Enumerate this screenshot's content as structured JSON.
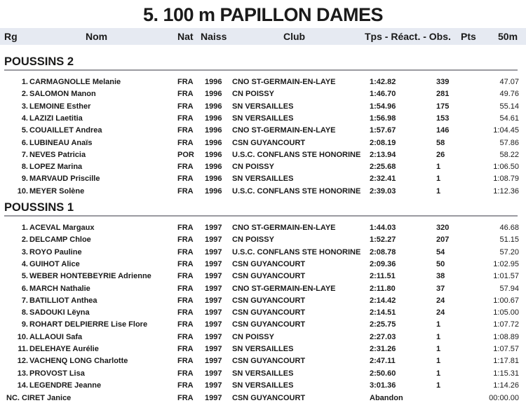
{
  "title": "5.  100 m PAPILLON DAMES",
  "columns": {
    "rg": "Rg",
    "nom": "Nom",
    "nat": "Nat",
    "naiss": "Naiss",
    "club": "Club",
    "tps": "Tps - Réact. - Obs.",
    "pts": "Pts",
    "split": "50m"
  },
  "sections": [
    {
      "name": "POUSSINS 2",
      "rows": [
        {
          "rk": "1.",
          "name": "CARMAGNOLLE Melanie",
          "nat": "FRA",
          "year": "1996",
          "club": "CNO ST-GERMAIN-EN-LAYE",
          "time": "1:42.82",
          "pts": "339",
          "split": "47.07"
        },
        {
          "rk": "2.",
          "name": "SALOMON Manon",
          "nat": "FRA",
          "year": "1996",
          "club": "CN POISSY",
          "time": "1:46.70",
          "pts": "281",
          "split": "49.76"
        },
        {
          "rk": "3.",
          "name": "LEMOINE Esther",
          "nat": "FRA",
          "year": "1996",
          "club": "SN VERSAILLES",
          "time": "1:54.96",
          "pts": "175",
          "split": "55.14"
        },
        {
          "rk": "4.",
          "name": "LAZIZI Laetitia",
          "nat": "FRA",
          "year": "1996",
          "club": "SN VERSAILLES",
          "time": "1:56.98",
          "pts": "153",
          "split": "54.61"
        },
        {
          "rk": "5.",
          "name": "COUAILLET Andrea",
          "nat": "FRA",
          "year": "1996",
          "club": "CNO ST-GERMAIN-EN-LAYE",
          "time": "1:57.67",
          "pts": "146",
          "split": "1:04.45"
        },
        {
          "rk": "6.",
          "name": "LUBINEAU Anaïs",
          "nat": "FRA",
          "year": "1996",
          "club": "CSN GUYANCOURT",
          "time": "2:08.19",
          "pts": "58",
          "split": "57.86"
        },
        {
          "rk": "7.",
          "name": "NEVES Patricia",
          "nat": "POR",
          "year": "1996",
          "club": "U.S.C. CONFLANS STE HONORINE",
          "time": "2:13.94",
          "pts": "26",
          "split": "58.22"
        },
        {
          "rk": "8.",
          "name": "LOPEZ Marina",
          "nat": "FRA",
          "year": "1996",
          "club": "CN POISSY",
          "time": "2:25.68",
          "pts": "1",
          "split": "1:06.50"
        },
        {
          "rk": "9.",
          "name": "MARVAUD Priscille",
          "nat": "FRA",
          "year": "1996",
          "club": "SN VERSAILLES",
          "time": "2:32.41",
          "pts": "1",
          "split": "1:08.79"
        },
        {
          "rk": "10.",
          "name": "MEYER Solène",
          "nat": "FRA",
          "year": "1996",
          "club": "U.S.C. CONFLANS STE HONORINE",
          "time": "2:39.03",
          "pts": "1",
          "split": "1:12.36"
        }
      ]
    },
    {
      "name": "POUSSINS 1",
      "rows": [
        {
          "rk": "1.",
          "name": "ACEVAL Margaux",
          "nat": "FRA",
          "year": "1997",
          "club": "CNO ST-GERMAIN-EN-LAYE",
          "time": "1:44.03",
          "pts": "320",
          "split": "46.68"
        },
        {
          "rk": "2.",
          "name": "DELCAMP Chloe",
          "nat": "FRA",
          "year": "1997",
          "club": "CN POISSY",
          "time": "1:52.27",
          "pts": "207",
          "split": "51.15"
        },
        {
          "rk": "3.",
          "name": "ROYO Pauline",
          "nat": "FRA",
          "year": "1997",
          "club": "U.S.C. CONFLANS STE HONORINE",
          "time": "2:08.78",
          "pts": "54",
          "split": "57.20"
        },
        {
          "rk": "4.",
          "name": "GUIHOT Alice",
          "nat": "FRA",
          "year": "1997",
          "club": "CSN GUYANCOURT",
          "time": "2:09.36",
          "pts": "50",
          "split": "1:02.95"
        },
        {
          "rk": "5.",
          "name": "WEBER HONTEBEYRIE Adrienne",
          "nat": "FRA",
          "year": "1997",
          "club": "CSN GUYANCOURT",
          "time": "2:11.51",
          "pts": "38",
          "split": "1:01.57"
        },
        {
          "rk": "6.",
          "name": "MARCH Nathalie",
          "nat": "FRA",
          "year": "1997",
          "club": "CNO ST-GERMAIN-EN-LAYE",
          "time": "2:11.80",
          "pts": "37",
          "split": "57.94"
        },
        {
          "rk": "7.",
          "name": "BATILLIOT Anthea",
          "nat": "FRA",
          "year": "1997",
          "club": "CSN GUYANCOURT",
          "time": "2:14.42",
          "pts": "24",
          "split": "1:00.67"
        },
        {
          "rk": "8.",
          "name": "SADOUKI Lëyna",
          "nat": "FRA",
          "year": "1997",
          "club": "CSN GUYANCOURT",
          "time": "2:14.51",
          "pts": "24",
          "split": "1:05.00"
        },
        {
          "rk": "9.",
          "name": "ROHART DELPIERRE Lise Flore",
          "nat": "FRA",
          "year": "1997",
          "club": "CSN GUYANCOURT",
          "time": "2:25.75",
          "pts": "1",
          "split": "1:07.72"
        },
        {
          "rk": "10.",
          "name": "ALLAOUI Safa",
          "nat": "FRA",
          "year": "1997",
          "club": "CN POISSY",
          "time": "2:27.03",
          "pts": "1",
          "split": "1:08.89"
        },
        {
          "rk": "11.",
          "name": "DELEHAYE Aurélie",
          "nat": "FRA",
          "year": "1997",
          "club": "SN VERSAILLES",
          "time": "2:31.26",
          "pts": "1",
          "split": "1:07.57"
        },
        {
          "rk": "12.",
          "name": "VACHENQ LONG Charlotte",
          "nat": "FRA",
          "year": "1997",
          "club": "CSN GUYANCOURT",
          "time": "2:47.11",
          "pts": "1",
          "split": "1:17.81"
        },
        {
          "rk": "13.",
          "name": "PROVOST Lisa",
          "nat": "FRA",
          "year": "1997",
          "club": "SN VERSAILLES",
          "time": "2:50.60",
          "pts": "1",
          "split": "1:15.31"
        },
        {
          "rk": "14.",
          "name": "LEGENDRE Jeanne",
          "nat": "FRA",
          "year": "1997",
          "club": "SN VERSAILLES",
          "time": "3:01.36",
          "pts": "1",
          "split": "1:14.26"
        },
        {
          "rk": "NC.",
          "name": "CIRET Janice",
          "nat": "FRA",
          "year": "1997",
          "club": "CSN GUYANCOURT",
          "time": "Abandon",
          "pts": "",
          "split": "00:00.00"
        }
      ]
    }
  ]
}
